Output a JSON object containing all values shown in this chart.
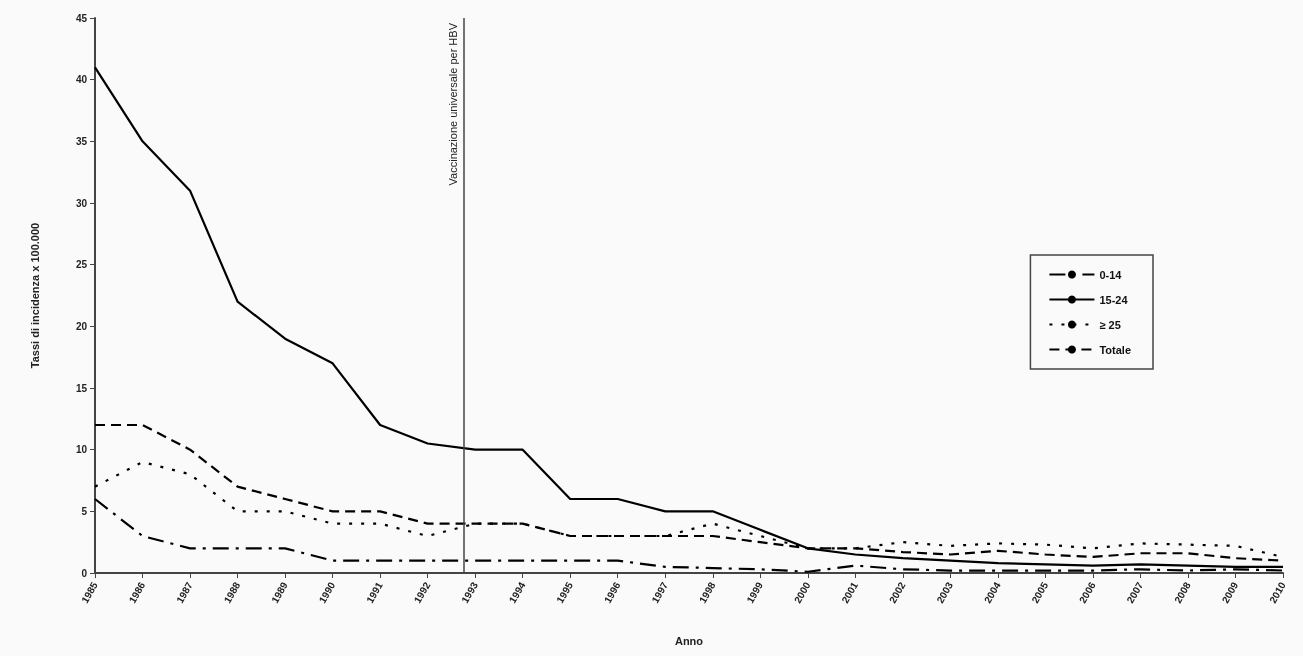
{
  "chart_data": {
    "type": "line",
    "xlabel": "Anno",
    "ylabel": "Tassi di incidenza x 100.000",
    "x": [
      1985,
      1986,
      1987,
      1988,
      1989,
      1990,
      1991,
      1992,
      1993,
      1994,
      1995,
      1996,
      1997,
      1998,
      1999,
      2000,
      2001,
      2002,
      2003,
      2004,
      2005,
      2006,
      2007,
      2008,
      2009,
      2010
    ],
    "xlim": [
      1985,
      2010
    ],
    "xticks": [
      1985,
      1986,
      1987,
      1988,
      1989,
      1990,
      1991,
      1992,
      1993,
      1994,
      1995,
      1996,
      1997,
      1998,
      1999,
      2000,
      2001,
      2002,
      2003,
      2004,
      2005,
      2006,
      2007,
      2008,
      2009,
      2010
    ],
    "ylim": [
      0,
      45
    ],
    "yticks": [
      0,
      5,
      10,
      15,
      20,
      25,
      30,
      35,
      40,
      45
    ],
    "series": [
      {
        "name": "0-14",
        "color": "#000000",
        "line_style": "dashdot",
        "values": [
          6,
          3,
          2,
          2,
          2,
          1,
          1,
          1,
          1,
          1,
          1,
          1,
          0.5,
          0.4,
          0.3,
          0.1,
          0.6,
          0.3,
          0.2,
          0.2,
          0.2,
          0.2,
          0.3,
          0.2,
          0.3,
          0.2
        ]
      },
      {
        "name": "15-24",
        "color": "#000000",
        "line_style": "solid",
        "values": [
          41,
          35,
          31,
          22,
          19,
          17,
          12,
          10.5,
          10,
          10,
          6,
          6,
          5,
          5,
          3.5,
          2,
          1.5,
          1.2,
          1,
          0.8,
          0.7,
          0.6,
          0.7,
          0.6,
          0.5,
          0.5
        ]
      },
      {
        "name": "≥ 25",
        "color": "#000000",
        "line_style": "dotted",
        "values": [
          7,
          9,
          8,
          5,
          5,
          4,
          4,
          3,
          4,
          4,
          3,
          3,
          3,
          4,
          3,
          2,
          2,
          2.5,
          2.2,
          2.4,
          2.3,
          2,
          2.4,
          2.3,
          2.2,
          1.3
        ]
      },
      {
        "name": "Totale",
        "color": "#000000",
        "line_style": "dashed",
        "values": [
          12,
          12,
          10,
          7,
          6,
          5,
          5,
          4,
          4,
          4,
          3,
          3,
          3,
          3,
          2.5,
          2,
          2,
          1.7,
          1.5,
          1.8,
          1.5,
          1.3,
          1.6,
          1.6,
          1.2,
          1
        ]
      }
    ],
    "ref_lines": [
      {
        "axis": "x",
        "value": 1992.75,
        "label": "Vaccinazione universale per HBV",
        "color": "#444444"
      }
    ],
    "grid": false,
    "legend": "right",
    "marker": "none"
  }
}
